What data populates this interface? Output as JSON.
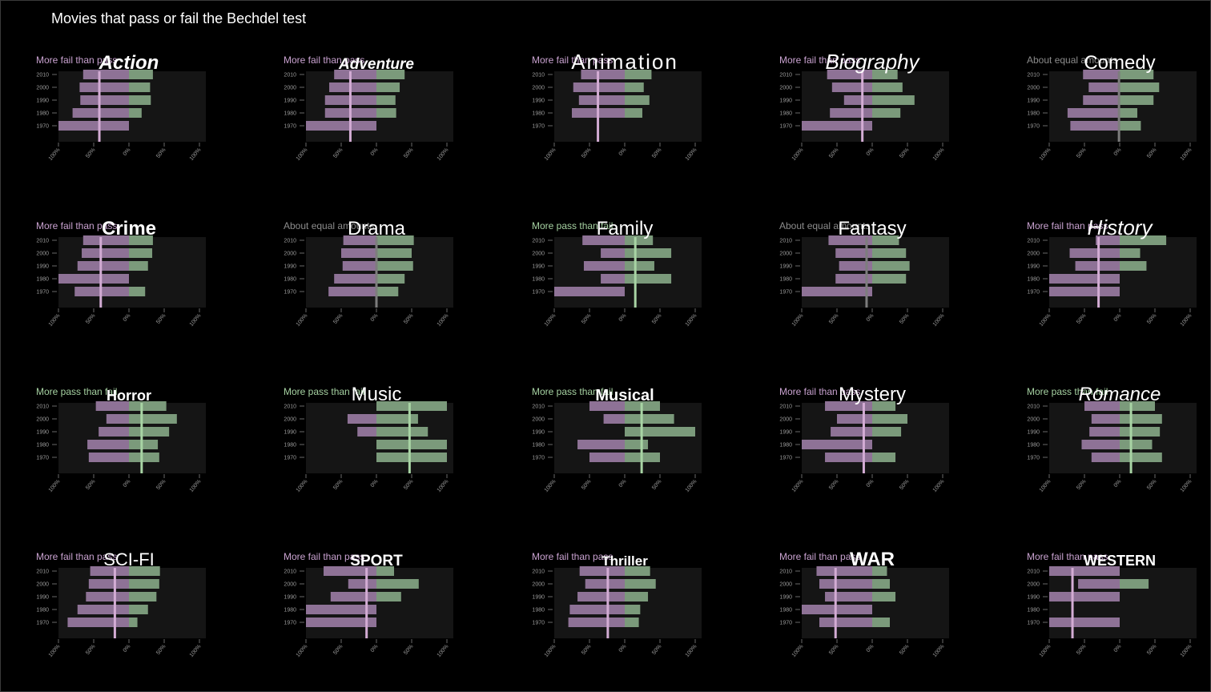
{
  "title": "Movies that pass or fail the Bechdel test",
  "colors": {
    "background": "#000000",
    "panel": "#151515",
    "fail": "#8e7296",
    "pass": "#7b9a7b",
    "line_fail": "#d3acd4",
    "line_pass": "#a8d4a4",
    "line_equal": "#7d7d7d",
    "label_fail": "#c9a2d0",
    "label_pass": "#a6d2a2",
    "label_equal": "#8c8c8c",
    "tick": "#9a9a9a"
  },
  "chart_data": {
    "type": "bar",
    "orientation": "horizontal diverging",
    "years": [
      "2010",
      "2000",
      "1990",
      "1980",
      "1970"
    ],
    "x_ticks": [
      "100%",
      "50%",
      "0%",
      "50%",
      "100%"
    ],
    "xlim": [
      -100,
      100
    ],
    "series_names": [
      "fail",
      "pass"
    ],
    "panels": [
      {
        "genre": "Action",
        "label": "More fail than pass",
        "tendency": "fail",
        "line": -42,
        "fail": [
          65,
          70,
          69,
          80,
          100
        ],
        "pass": [
          34,
          30,
          31,
          18,
          0
        ]
      },
      {
        "genre": "Adventure",
        "label": "More fail than pass",
        "tendency": "fail",
        "line": -37,
        "fail": [
          60,
          67,
          73,
          73,
          100
        ],
        "pass": [
          40,
          33,
          27,
          28,
          0
        ]
      },
      {
        "genre": "Animation",
        "label": "More fail than pass",
        "tendency": "fail",
        "line": -38,
        "fail": [
          62,
          73,
          65,
          75,
          0
        ],
        "pass": [
          38,
          27,
          35,
          25,
          0
        ]
      },
      {
        "genre": "Biography",
        "label": "More fail than pass",
        "tendency": "fail",
        "line": -14,
        "fail": [
          64,
          57,
          40,
          60,
          100
        ],
        "pass": [
          36,
          43,
          60,
          40,
          0
        ]
      },
      {
        "genre": "Comedy",
        "label": "About equal amounts",
        "tendency": "equal",
        "line": -1,
        "fail": [
          52,
          44,
          52,
          74,
          70
        ],
        "pass": [
          48,
          56,
          48,
          25,
          30
        ]
      },
      {
        "genre": "Crime",
        "label": "More fail than pass",
        "tendency": "fail",
        "line": -40,
        "fail": [
          65,
          67,
          73,
          100,
          77
        ],
        "pass": [
          34,
          33,
          27,
          0,
          23
        ]
      },
      {
        "genre": "Drama",
        "label": "About equal amounts",
        "tendency": "equal",
        "line": 0,
        "fail": [
          47,
          50,
          48,
          60,
          68
        ],
        "pass": [
          53,
          50,
          52,
          40,
          31
        ]
      },
      {
        "genre": "Family",
        "label": "More pass than fail",
        "tendency": "pass",
        "line": 15,
        "fail": [
          60,
          34,
          58,
          34,
          100
        ],
        "pass": [
          40,
          66,
          42,
          66,
          0
        ]
      },
      {
        "genre": "Fantasy",
        "label": "About equal amounts",
        "tendency": "equal",
        "line": -8,
        "fail": [
          62,
          52,
          47,
          52,
          100
        ],
        "pass": [
          38,
          48,
          53,
          48,
          0
        ]
      },
      {
        "genre": "History",
        "label": "More fail than pass",
        "tendency": "fail",
        "line": -30,
        "fail": [
          34,
          71,
          63,
          100,
          100
        ],
        "pass": [
          66,
          29,
          38,
          0,
          0
        ]
      },
      {
        "genre": "Horror",
        "label": "More pass than fail",
        "tendency": "pass",
        "line": 18,
        "fail": [
          47,
          32,
          43,
          59,
          57
        ],
        "pass": [
          53,
          68,
          57,
          41,
          43
        ]
      },
      {
        "genre": "Music",
        "label": "More pass than fail",
        "tendency": "pass",
        "line": 47,
        "fail": [
          0,
          41,
          27,
          0,
          0
        ],
        "pass": [
          100,
          59,
          73,
          100,
          100
        ]
      },
      {
        "genre": "Musical",
        "label": "More pass than fail",
        "tendency": "pass",
        "line": 24,
        "fail": [
          50,
          30,
          0,
          67,
          50
        ],
        "pass": [
          50,
          70,
          100,
          33,
          50
        ]
      },
      {
        "genre": "Mystery",
        "label": "More fail than pass",
        "tendency": "fail",
        "line": -12,
        "fail": [
          67,
          50,
          59,
          100,
          67
        ],
        "pass": [
          33,
          50,
          41,
          0,
          33
        ]
      },
      {
        "genre": "Romance",
        "label": "More pass than fail",
        "tendency": "pass",
        "line": 16,
        "fail": [
          50,
          40,
          43,
          54,
          40
        ],
        "pass": [
          50,
          60,
          57,
          46,
          60
        ]
      },
      {
        "genre": "Sci-Fi",
        "label": "More fail than pass",
        "tendency": "fail",
        "line": -20,
        "fail": [
          55,
          57,
          61,
          73,
          87
        ],
        "pass": [
          44,
          43,
          39,
          27,
          12
        ]
      },
      {
        "genre": "Sport",
        "label": "More fail than pass",
        "tendency": "fail",
        "line": -14,
        "fail": [
          75,
          40,
          65,
          100,
          100
        ],
        "pass": [
          25,
          60,
          35,
          0,
          0
        ]
      },
      {
        "genre": "Thriller",
        "label": "More fail than pass",
        "tendency": "fail",
        "line": -24,
        "fail": [
          64,
          56,
          67,
          78,
          80
        ],
        "pass": [
          36,
          44,
          33,
          22,
          20
        ]
      },
      {
        "genre": "War",
        "label": "More fail than pass",
        "tendency": "fail",
        "line": -52,
        "fail": [
          79,
          75,
          67,
          100,
          75
        ],
        "pass": [
          21,
          25,
          33,
          0,
          25
        ]
      },
      {
        "genre": "Western",
        "label": "More fail than pass",
        "tendency": "fail",
        "line": -67,
        "fail": [
          100,
          59,
          100,
          0,
          100
        ],
        "pass": [
          0,
          41,
          0,
          0,
          0
        ]
      }
    ]
  }
}
